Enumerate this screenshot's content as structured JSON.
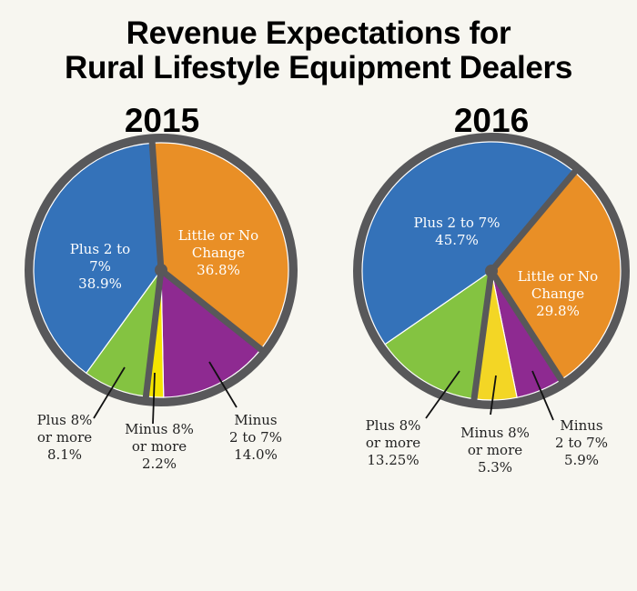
{
  "title_lines": [
    "Revenue Expectations for",
    "Rural Lifestyle Equipment Dealers"
  ],
  "colors": {
    "background": "#f7f6f0",
    "border": "#58585a",
    "blue": "#3472b9",
    "orange": "#e98f26",
    "purple": "#8e2a91",
    "yellow": "#f5e400",
    "yellow_2016": "#f3d625",
    "green": "#84c341",
    "leader": "#111111"
  },
  "chart_data": [
    {
      "type": "pie",
      "title": "2015",
      "start_angle_deg": -4,
      "slices": [
        {
          "key": "little",
          "name": "Little or No Change",
          "value": 36.8,
          "color_key": "orange",
          "label_lines": [
            "Little or No",
            "Change",
            "36.8%"
          ],
          "label_inside": true
        },
        {
          "key": "minus27",
          "name": "Minus 2 to 7%",
          "value": 14.0,
          "color_key": "purple",
          "label_lines": [
            "Minus",
            "2 to 7%",
            "14.0%"
          ],
          "label_inside": false
        },
        {
          "key": "minus8",
          "name": "Minus 8% or more",
          "value": 2.2,
          "color_key": "yellow",
          "label_lines": [
            "Minus 8%",
            "or more",
            "2.2%"
          ],
          "label_inside": false
        },
        {
          "key": "plus8",
          "name": "Plus 8% or more",
          "value": 8.1,
          "color_key": "green",
          "label_lines": [
            "Plus 8%",
            "or more",
            "8.1%"
          ],
          "label_inside": false
        },
        {
          "key": "plus27",
          "name": "Plus 2 to 7%",
          "value": 38.9,
          "color_key": "blue",
          "label_lines": [
            "Plus 2 to",
            "7%",
            "38.9%"
          ],
          "label_inside": true
        }
      ]
    },
    {
      "type": "pie",
      "title": "2016",
      "start_angle_deg": 40,
      "slices": [
        {
          "key": "little",
          "name": "Little or No Change",
          "value": 29.8,
          "color_key": "orange",
          "label_lines": [
            "Little or No",
            "Change",
            "29.8%"
          ],
          "label_inside": true
        },
        {
          "key": "minus27",
          "name": "Minus 2 to 7%",
          "value": 5.9,
          "color_key": "purple",
          "label_lines": [
            "Minus",
            "2 to 7%",
            "5.9%"
          ],
          "label_inside": false
        },
        {
          "key": "minus8",
          "name": "Minus 8% or more",
          "value": 5.3,
          "color_key": "yellow_2016",
          "label_lines": [
            "Minus 8%",
            "or more",
            "5.3%"
          ],
          "label_inside": false
        },
        {
          "key": "plus8",
          "name": "Plus 8% or more",
          "value": 13.25,
          "color_key": "green",
          "label_lines": [
            "Plus 8%",
            "or more",
            "13.25%"
          ],
          "label_inside": false
        },
        {
          "key": "plus27",
          "name": "Plus 2 to 7%",
          "value": 45.7,
          "color_key": "blue",
          "label_lines": [
            "Plus 2 to 7%",
            "45.7%"
          ],
          "label_inside": true
        }
      ]
    }
  ]
}
